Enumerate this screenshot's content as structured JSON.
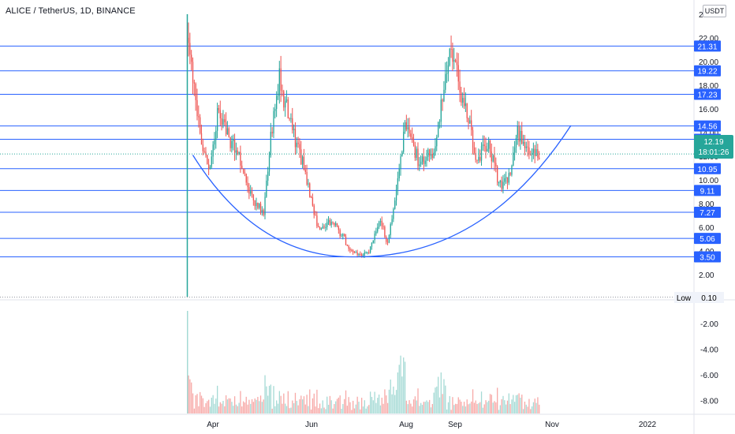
{
  "header": {
    "title": "ALICE / TetherUS, 1D, BINANCE",
    "unit": "USDT"
  },
  "colors": {
    "up": "#26a69a",
    "down": "#ef5350",
    "up_volume": "#a5dad5",
    "down_volume": "#f7a9a7",
    "level_line": "#2962ff",
    "curve": "#2962ff",
    "current_price_badge": "#26a69a",
    "axis_text": "#131722",
    "low_badge": "#f0f3fa"
  },
  "chart_data": {
    "type": "candlestick",
    "symbol": "ALICE / TetherUS",
    "interval": "1D",
    "exchange": "BINANCE",
    "x_ticks": [
      "Apr",
      "Jun",
      "Aug",
      "Sep",
      "Nov",
      "2022"
    ],
    "y_ticks": [
      "2.00",
      "4.00",
      "6.00",
      "8.00",
      "10.00",
      "12.00",
      "14.00",
      "16.00",
      "18.00",
      "20.00",
      "22.00",
      "24.00"
    ],
    "volume_ticks": [
      "-2.00",
      "-4.00",
      "-6.00",
      "-8.00"
    ],
    "y_range": [
      0,
      24
    ],
    "horizontal_levels": [
      3.5,
      5.06,
      7.27,
      9.11,
      10.95,
      13.43,
      14.56,
      17.23,
      19.22,
      21.31
    ],
    "level_labels": [
      "3.50",
      "5.06",
      "7.27",
      "9.11",
      "10.95",
      "13.43",
      "14.56",
      "17.23",
      "19.22",
      "21.31"
    ],
    "current_price": {
      "price": "12.19",
      "countdown": "18:01:26"
    },
    "low": {
      "label": "Low",
      "value": "0.10"
    },
    "rounded_bottom_curve": {
      "from_price": 12.1,
      "bottom_price": 3.5,
      "to_price": 14.6
    },
    "segments": [
      {
        "start": 0,
        "end": 8,
        "from": 21.0,
        "to": 13.5
      },
      {
        "start": 8,
        "end": 14,
        "from": 13.5,
        "to": 10.5
      },
      {
        "start": 14,
        "end": 20,
        "from": 10.5,
        "to": 15.5
      },
      {
        "start": 20,
        "end": 34,
        "from": 15.5,
        "to": 12.2
      },
      {
        "start": 34,
        "end": 44,
        "from": 12.2,
        "to": 8.5
      },
      {
        "start": 44,
        "end": 52,
        "from": 8.5,
        "to": 7.0
      },
      {
        "start": 52,
        "end": 57,
        "from": 7.0,
        "to": 13.5
      },
      {
        "start": 57,
        "end": 63,
        "from": 13.5,
        "to": 18.5
      },
      {
        "start": 63,
        "end": 72,
        "from": 18.5,
        "to": 14.0
      },
      {
        "start": 72,
        "end": 80,
        "from": 14.0,
        "to": 11.0
      },
      {
        "start": 80,
        "end": 90,
        "from": 11.0,
        "to": 6.0
      },
      {
        "start": 90,
        "end": 100,
        "from": 6.0,
        "to": 6.5
      },
      {
        "start": 100,
        "end": 110,
        "from": 6.5,
        "to": 4.5
      },
      {
        "start": 110,
        "end": 118,
        "from": 4.5,
        "to": 3.6
      },
      {
        "start": 118,
        "end": 125,
        "from": 3.6,
        "to": 4.0
      },
      {
        "start": 125,
        "end": 133,
        "from": 4.0,
        "to": 6.8
      },
      {
        "start": 133,
        "end": 138,
        "from": 6.8,
        "to": 4.5
      },
      {
        "start": 138,
        "end": 145,
        "from": 4.5,
        "to": 10.0
      },
      {
        "start": 145,
        "end": 150,
        "from": 10.0,
        "to": 14.5
      },
      {
        "start": 150,
        "end": 160,
        "from": 14.5,
        "to": 11.5
      },
      {
        "start": 160,
        "end": 170,
        "from": 11.5,
        "to": 12.5
      },
      {
        "start": 170,
        "end": 178,
        "from": 12.5,
        "to": 18.5
      },
      {
        "start": 178,
        "end": 182,
        "from": 18.5,
        "to": 21.5
      },
      {
        "start": 182,
        "end": 190,
        "from": 21.5,
        "to": 17.0
      },
      {
        "start": 190,
        "end": 200,
        "from": 17.0,
        "to": 12.0
      },
      {
        "start": 200,
        "end": 208,
        "from": 12.0,
        "to": 12.8
      },
      {
        "start": 208,
        "end": 216,
        "from": 12.8,
        "to": 9.5
      },
      {
        "start": 216,
        "end": 222,
        "from": 9.5,
        "to": 10.3
      },
      {
        "start": 222,
        "end": 228,
        "from": 10.3,
        "to": 14.0
      },
      {
        "start": 228,
        "end": 236,
        "from": 14.0,
        "to": 12.0
      },
      {
        "start": 236,
        "end": 244,
        "from": 12.0,
        "to": 12.2
      }
    ]
  }
}
